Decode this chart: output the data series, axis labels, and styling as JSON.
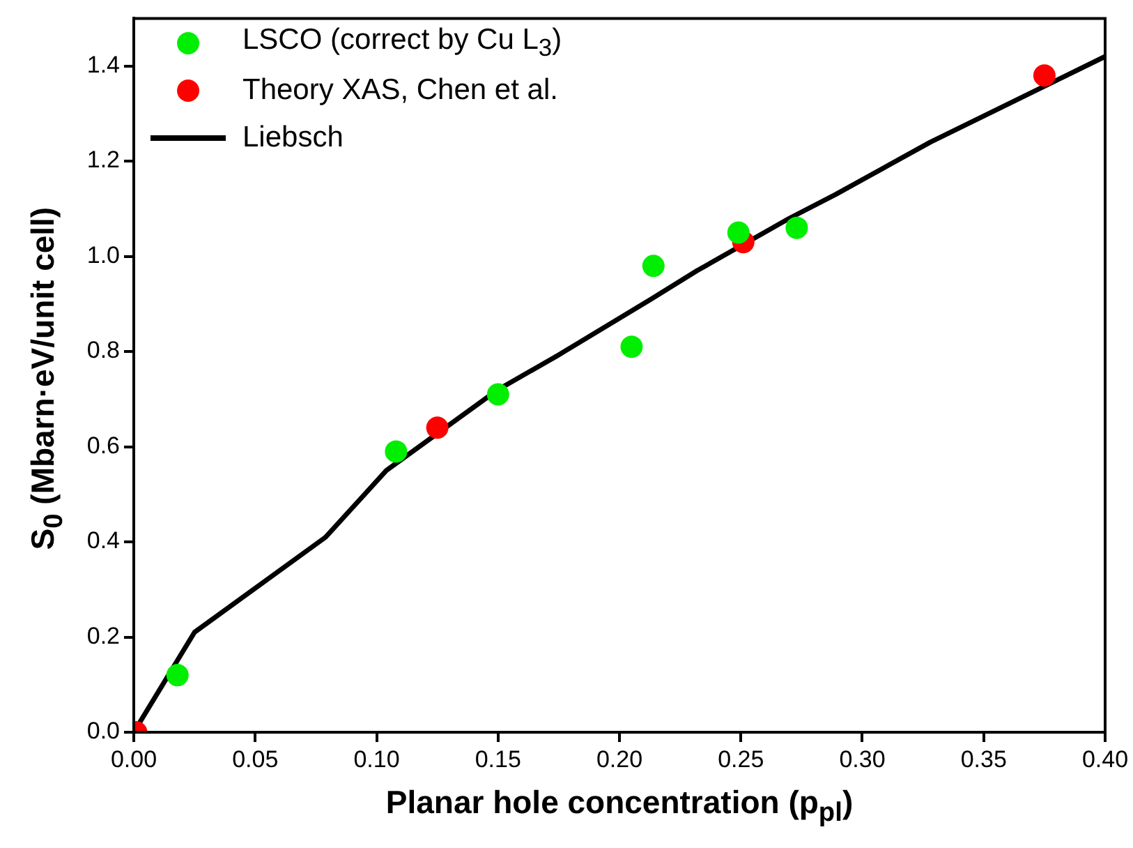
{
  "chart_data": {
    "type": "scatter",
    "xlabel": "Planar hole concentration (p$_{pl}$)",
    "ylabel": "S$_{0}$ (Mbarn·eV/unit cell)",
    "xlim": [
      0,
      0.4
    ],
    "ylim": [
      0,
      1.5
    ],
    "xticks": [
      {
        "value": 0,
        "label": "0.00"
      },
      {
        "value": 0.05,
        "label": "0.05"
      },
      {
        "value": 0.1,
        "label": "0.10"
      },
      {
        "value": 0.15,
        "label": "0.15"
      },
      {
        "value": 0.2,
        "label": "0.20"
      },
      {
        "value": 0.25,
        "label": "0.25"
      },
      {
        "value": 0.3,
        "label": "0.30"
      },
      {
        "value": 0.35,
        "label": "0.35"
      },
      {
        "value": 0.4,
        "label": "0.40"
      }
    ],
    "yticks": [
      {
        "value": 0,
        "label": "0.0"
      },
      {
        "value": 0.2,
        "label": "0.2"
      },
      {
        "value": 0.4,
        "label": "0.4"
      },
      {
        "value": 0.6,
        "label": "0.6"
      },
      {
        "value": 0.8,
        "label": "0.8"
      },
      {
        "value": 1,
        "label": "1.0"
      },
      {
        "value": 1.2,
        "label": "1.2"
      },
      {
        "value": 1.4,
        "label": "1.4"
      }
    ],
    "grid": false,
    "legend": "top left",
    "marker": "circle",
    "series": [
      {
        "name": "LSCO (correct by Cu L$_{3}$)",
        "color": "#00ee00",
        "x": [
          0.018,
          0.108,
          0.15,
          0.205,
          0.214,
          0.249,
          0.273
        ],
        "values": [
          0.12,
          0.59,
          0.71,
          0.81,
          0.98,
          1.05,
          1.06
        ]
      },
      {
        "name": "Theory XAS, Chen et al.",
        "color": "#ff0000",
        "x": [
          0.001,
          0.125,
          0.251,
          0.375
        ],
        "values": [
          0.0,
          0.64,
          1.03,
          1.38
        ]
      },
      {
        "name": "Liebsch",
        "type": "line",
        "color": "#000000",
        "marker": "none",
        "x": [
          0,
          0.025,
          0.079,
          0.104,
          0.15,
          0.174,
          0.213,
          0.232,
          0.27,
          0.289,
          0.328,
          0.356,
          0.4
        ],
        "values": [
          0,
          0.21,
          0.41,
          0.55,
          0.72,
          0.79,
          0.91,
          0.97,
          1.08,
          1.13,
          1.24,
          1.31,
          1.42
        ]
      }
    ]
  }
}
